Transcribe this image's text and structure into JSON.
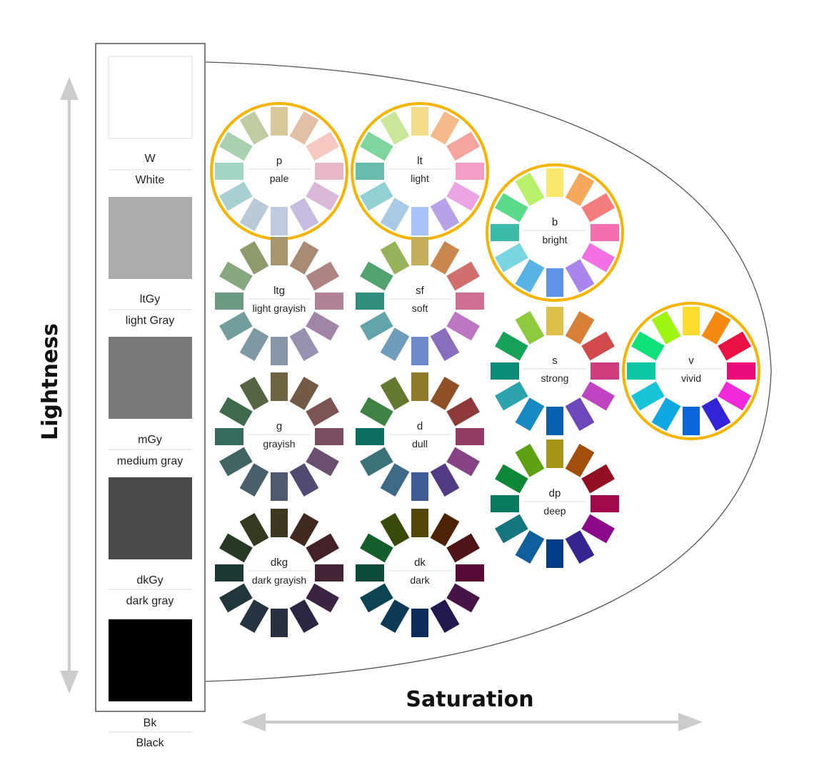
{
  "axes": {
    "vertical_label": "Lightness",
    "horizontal_label": "Saturation",
    "arrow_color": "#cccccc"
  },
  "highlight_color": "#f5b400",
  "grays": [
    {
      "code": "W",
      "name": "White",
      "color": "#ffffff"
    },
    {
      "code": "ltGy",
      "name": "light Gray",
      "color": "#acacac"
    },
    {
      "code": "mGy",
      "name": "medium gray",
      "color": "#7a7a7a"
    },
    {
      "code": "dkGy",
      "name": "dark gray",
      "color": "#494949"
    },
    {
      "code": "Bk",
      "name": "Black",
      "color": "#000000"
    }
  ],
  "tones": [
    {
      "code": "p",
      "name": "pale",
      "highlighted": true,
      "colors": [
        "#d7c89a",
        "#e2bfa7",
        "#f5c9c2",
        "#e8b8c9",
        "#dcb8d8",
        "#c5bce0",
        "#bfc9e0",
        "#b9cad7",
        "#a8cfd1",
        "#a2d5c4",
        "#a9d1b0",
        "#bfcca1"
      ]
    },
    {
      "code": "lt",
      "name": "light",
      "highlighted": true,
      "colors": [
        "#f2dc8c",
        "#f5b98a",
        "#f6a4a0",
        "#f79ec8",
        "#eaa3e3",
        "#b7a2ea",
        "#a9c3fa",
        "#a8cae5",
        "#93d0d6",
        "#67bcae",
        "#7ed59d",
        "#c9e699"
      ]
    },
    {
      "code": "b",
      "name": "bright",
      "highlighted": true,
      "colors": [
        "#f9e86e",
        "#f7a85c",
        "#f47c7c",
        "#f56fae",
        "#f36fe4",
        "#a985ee",
        "#5f95e8",
        "#57b2e6",
        "#79d5e0",
        "#3cbba8",
        "#5ada8a",
        "#b9f06a"
      ]
    },
    {
      "code": "v",
      "name": "vivid",
      "highlighted": true,
      "colors": [
        "#fcdc2e",
        "#f58a10",
        "#ea1043",
        "#ea0a7a",
        "#f229d8",
        "#3322d8",
        "#0a65d8",
        "#0fa8e2",
        "#17c3d6",
        "#10c7a5",
        "#0ee07a",
        "#9ef512"
      ]
    },
    {
      "code": "ltg",
      "name": "light grayish",
      "highlighted": false,
      "colors": [
        "#a6976e",
        "#a88a75",
        "#af8383",
        "#b28396",
        "#9f86a7",
        "#9890b1",
        "#8897a8",
        "#7f99a4",
        "#739d9c",
        "#6c9982",
        "#86a77f",
        "#8f9a6c"
      ]
    },
    {
      "code": "sf",
      "name": "soft",
      "highlighted": false,
      "colors": [
        "#c4ae5c",
        "#c9874e",
        "#d16f70",
        "#cf6f96",
        "#bd76c1",
        "#876ebe",
        "#6e8cc9",
        "#6f9dbc",
        "#61a4a9",
        "#2f8e7d",
        "#52a16f",
        "#98b25c"
      ]
    },
    {
      "code": "s",
      "name": "strong",
      "highlighted": false,
      "colors": [
        "#dcc04a",
        "#d88038",
        "#d34a4c",
        "#cf3d7f",
        "#c043c1",
        "#6d48bb",
        "#0a5fb0",
        "#1989c4",
        "#2da3ad",
        "#0a8c78",
        "#17a25a",
        "#8fca3e"
      ]
    },
    {
      "code": "g",
      "name": "grayish",
      "highlighted": false,
      "colors": [
        "#6e6440",
        "#745a46",
        "#7b5453",
        "#7d4d63",
        "#6a4f6e",
        "#534a72",
        "#4f5a6e",
        "#4a5f6a",
        "#426564",
        "#366a5d",
        "#3f6b4c",
        "#556442"
      ]
    },
    {
      "code": "d",
      "name": "dull",
      "highlighted": false,
      "colors": [
        "#8e7b2c",
        "#8f5026",
        "#8f3a3a",
        "#943b61",
        "#864285",
        "#503b84",
        "#3f5c97",
        "#3e6a88",
        "#3a7277",
        "#0b6e5e",
        "#3f8245",
        "#62792f"
      ]
    },
    {
      "code": "dp",
      "name": "deep",
      "highlighted": false,
      "colors": [
        "#a89417",
        "#a24f0c",
        "#931024",
        "#a2084b",
        "#8a0a8a",
        "#352591",
        "#023c86",
        "#0e5f9c",
        "#167680",
        "#0a7a5e",
        "#0e8838",
        "#5da012"
      ]
    },
    {
      "code": "dkg",
      "name": "dark grayish",
      "highlighted": false,
      "colors": [
        "#3d381f",
        "#42291f",
        "#432126",
        "#452337",
        "#3b2442",
        "#2a2541",
        "#2a2f3f",
        "#253440",
        "#21373b",
        "#1d3933",
        "#263a24",
        "#343a1f"
      ]
    },
    {
      "code": "dk",
      "name": "dark",
      "highlighted": false,
      "colors": [
        "#524609",
        "#4d2306",
        "#4e1418",
        "#5a0a36",
        "#471446",
        "#221a4e",
        "#0e2c5a",
        "#0e3a57",
        "#0c4451",
        "#0b4a3b",
        "#135e2a",
        "#384a0a"
      ]
    }
  ]
}
